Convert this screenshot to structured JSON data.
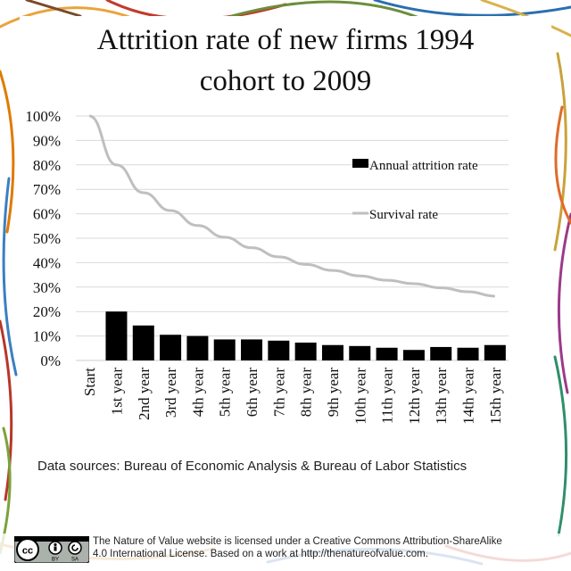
{
  "title_line1": "Attrition rate of new firms 1994",
  "title_line2": "cohort to 2009",
  "source_text": "Data sources: Bureau of Economic Analysis & Bureau of Labor Statistics",
  "license_line1": "The Nature of Value website is licensed under a Creative Commons Attribution-ShareAlike",
  "license_line2": "4.0 International License.  Based on a work at http://thenatureofvalue.com.",
  "cc_badge": {
    "icon": "cc-by-sa-icon",
    "by_label": "BY",
    "sa_label": "SA"
  },
  "colors": {
    "bar": "#000000",
    "line": "#bfbfbf",
    "grid": "#d9d9d9",
    "accent": "#e07a00"
  },
  "chart_data": {
    "type": "bar",
    "title": "Attrition rate of new firms 1994 cohort to 2009",
    "categories": [
      "Start",
      "1st year",
      "2nd year",
      "3rd year",
      "4th year",
      "5th year",
      "6th year",
      "7th year",
      "8th year",
      "9th year",
      "10th year",
      "11th year",
      "12th year",
      "13th year",
      "14th year",
      "15th year"
    ],
    "y_ticks": [
      "0%",
      "10%",
      "20%",
      "30%",
      "40%",
      "50%",
      "60%",
      "70%",
      "80%",
      "90%",
      "100%"
    ],
    "ylim": [
      0,
      100
    ],
    "grid": true,
    "legend_position": "top-right",
    "series": [
      {
        "name": "Annual attrition rate",
        "type": "bar",
        "values": [
          null,
          20,
          14.3,
          10.5,
          10,
          8.6,
          8.6,
          8.1,
          7.3,
          6.3,
          5.9,
          5.2,
          4.3,
          5.5,
          5.2,
          6.3
        ]
      },
      {
        "name": "Survival rate",
        "type": "line",
        "values": [
          100,
          80,
          68.6,
          61.3,
          55.2,
          50.4,
          46.1,
          42.4,
          39.3,
          36.8,
          34.6,
          32.8,
          31.4,
          29.7,
          28.1,
          26.3
        ]
      }
    ]
  }
}
